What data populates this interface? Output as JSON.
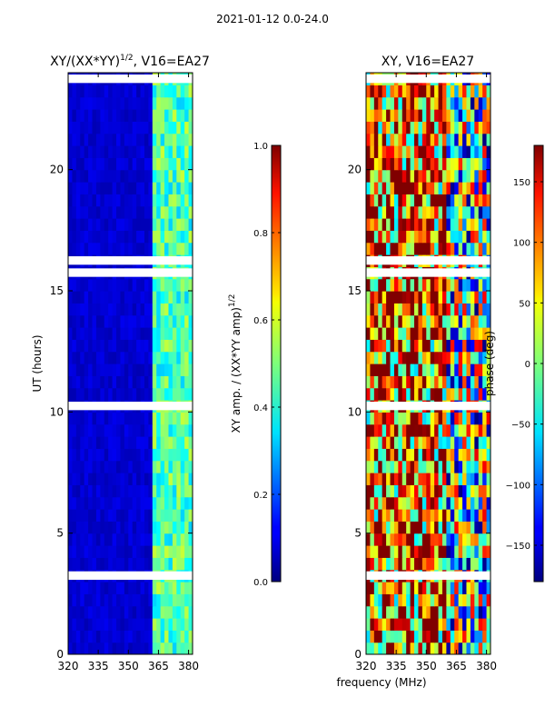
{
  "header": {
    "date_range": "2021-01-12 0.0-24.0"
  },
  "chart_data": [
    {
      "type": "heatmap",
      "title": "XY/(XX*YY)",
      "title_exponent": "1/2",
      "title_suffix": ", V16=EA27",
      "xlabel": "",
      "ylabel": "UT (hours)",
      "xlim": [
        320,
        382
      ],
      "ylim": [
        0,
        24
      ],
      "x_ticks": [
        "320",
        "335",
        "350",
        "365",
        "380"
      ],
      "y_ticks": [
        "0",
        "5",
        "10",
        "15",
        "20"
      ],
      "colorbar": {
        "label": "XY amp. / (XX*YY amp)",
        "label_exponent": "1/2",
        "range": [
          0.0,
          1.0
        ],
        "ticks": [
          "0.0",
          "0.2",
          "0.4",
          "0.6",
          "0.8",
          "1.0"
        ],
        "colormap": "jet"
      },
      "dominant_value": 0.05,
      "bright_band_mhz": [
        362,
        381
      ],
      "bright_band_value": 0.45
    },
    {
      "type": "heatmap",
      "title": "XY, V16=EA27",
      "xlabel": "frequency (MHz)",
      "ylabel": "",
      "xlim": [
        320,
        382
      ],
      "ylim": [
        0,
        24
      ],
      "x_ticks": [
        "320",
        "335",
        "350",
        "365",
        "380"
      ],
      "y_ticks": [
        "0",
        "5",
        "10",
        "15",
        "20"
      ],
      "colorbar": {
        "label": "phase (deg)",
        "range": [
          -180,
          180
        ],
        "ticks": [
          "−150",
          "−100",
          "−50",
          "0",
          "50",
          "100",
          "150"
        ],
        "colormap": "jet"
      }
    }
  ],
  "colors": {
    "jet_dark_blue": "#00007f",
    "jet_blue": "#0000ff",
    "jet_cyan": "#00ffff",
    "jet_yellow": "#ffff00",
    "jet_red": "#ff0000",
    "jet_dark_red": "#7f0000",
    "flag_white": "#ffffff"
  }
}
